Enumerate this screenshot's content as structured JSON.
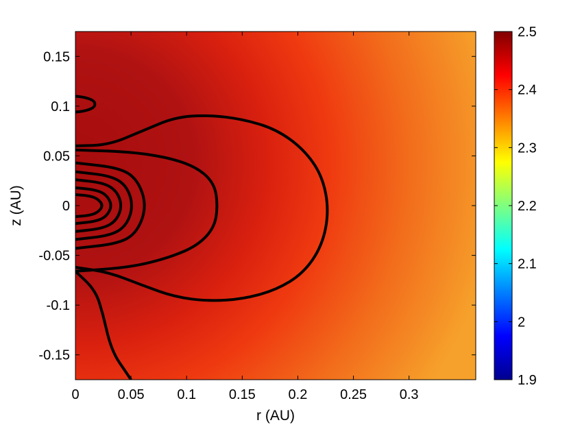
{
  "chart_data": {
    "type": "heatmap",
    "title": "",
    "xlabel": "r (AU)",
    "ylabel": "z (AU)",
    "xlim": [
      0,
      0.36
    ],
    "ylim": [
      -0.175,
      0.175
    ],
    "xticks": [
      0,
      0.05,
      0.1,
      0.15,
      0.2,
      0.25,
      0.3
    ],
    "xtick_labels": [
      "0",
      "0.05",
      "0.1",
      "0.15",
      "0.2",
      "0.25",
      "0.3"
    ],
    "yticks": [
      0.15,
      0.1,
      0.05,
      0,
      -0.05,
      -0.1,
      -0.15
    ],
    "ytick_labels": [
      "0.15",
      "0.1",
      "0.05",
      "0",
      "-0.05",
      "-0.1",
      "-0.15"
    ],
    "colorbar": {
      "range": [
        1.9,
        2.5
      ],
      "ticks": [
        2.5,
        2.4,
        2.3,
        2.2,
        2.1,
        2,
        1.9
      ],
      "tick_labels": [
        "2.5",
        "2.4",
        "2.3",
        "2.2",
        "2.1",
        "2",
        "1.9"
      ],
      "colormap": "jet"
    },
    "field_description": "values near 2.45-2.49 in inner region (dark red), decreasing to ~2.36 at outer edge (orange)",
    "contours": [
      {
        "r": [
          0,
          0.012,
          0.02,
          0.025,
          0.02,
          0.012,
          0
        ],
        "z": [
          0.011,
          0.01,
          0.007,
          0,
          -0.007,
          -0.01,
          -0.011
        ]
      },
      {
        "r": [
          0,
          0.018,
          0.028,
          0.033,
          0.028,
          0.018,
          0
        ],
        "z": [
          0.018,
          0.016,
          0.011,
          0,
          -0.011,
          -0.016,
          -0.018
        ]
      },
      {
        "r": [
          0,
          0.025,
          0.037,
          0.042,
          0.037,
          0.025,
          0
        ],
        "z": [
          0.026,
          0.023,
          0.015,
          0,
          -0.015,
          -0.023,
          -0.026
        ]
      },
      {
        "r": [
          0,
          0.032,
          0.046,
          0.052,
          0.046,
          0.032,
          0
        ],
        "z": [
          0.034,
          0.03,
          0.02,
          0,
          -0.02,
          -0.03,
          -0.034
        ]
      },
      {
        "r": [
          0,
          0.04,
          0.056,
          0.064,
          0.056,
          0.04,
          0
        ],
        "z": [
          0.043,
          0.038,
          0.026,
          0,
          -0.026,
          -0.038,
          -0.043
        ]
      },
      {
        "r": [
          0,
          0.05,
          0.085,
          0.11,
          0.125,
          0.128,
          0.125,
          0.11,
          0.085,
          0.05,
          0
        ],
        "z": [
          0.056,
          0.054,
          0.048,
          0.038,
          0.022,
          0,
          -0.022,
          -0.04,
          -0.052,
          -0.062,
          -0.066
        ]
      },
      {
        "r": [
          0,
          0.03,
          0.06,
          0.09,
          0.12,
          0.15,
          0.18,
          0.205,
          0.222,
          0.228,
          0.222,
          0.205,
          0.18,
          0.15,
          0.12,
          0.09,
          0.06,
          0.03,
          0
        ],
        "z": [
          0.06,
          0.061,
          0.075,
          0.089,
          0.091,
          0.087,
          0.077,
          0.057,
          0.03,
          -0.005,
          -0.04,
          -0.068,
          -0.085,
          -0.094,
          -0.096,
          -0.092,
          -0.08,
          -0.067,
          -0.062
        ]
      },
      {
        "r": [
          0,
          0.008,
          0.016,
          0.018,
          0.016,
          0.008,
          0
        ],
        "z": [
          0.11,
          0.109,
          0.106,
          0.102,
          0.098,
          0.095,
          0.094
        ]
      },
      {
        "r": [
          0,
          0.018,
          0.025,
          0.03,
          0.036,
          0.044,
          0.05
        ],
        "z": [
          -0.066,
          -0.085,
          -0.11,
          -0.135,
          -0.152,
          -0.165,
          -0.175
        ]
      }
    ]
  }
}
